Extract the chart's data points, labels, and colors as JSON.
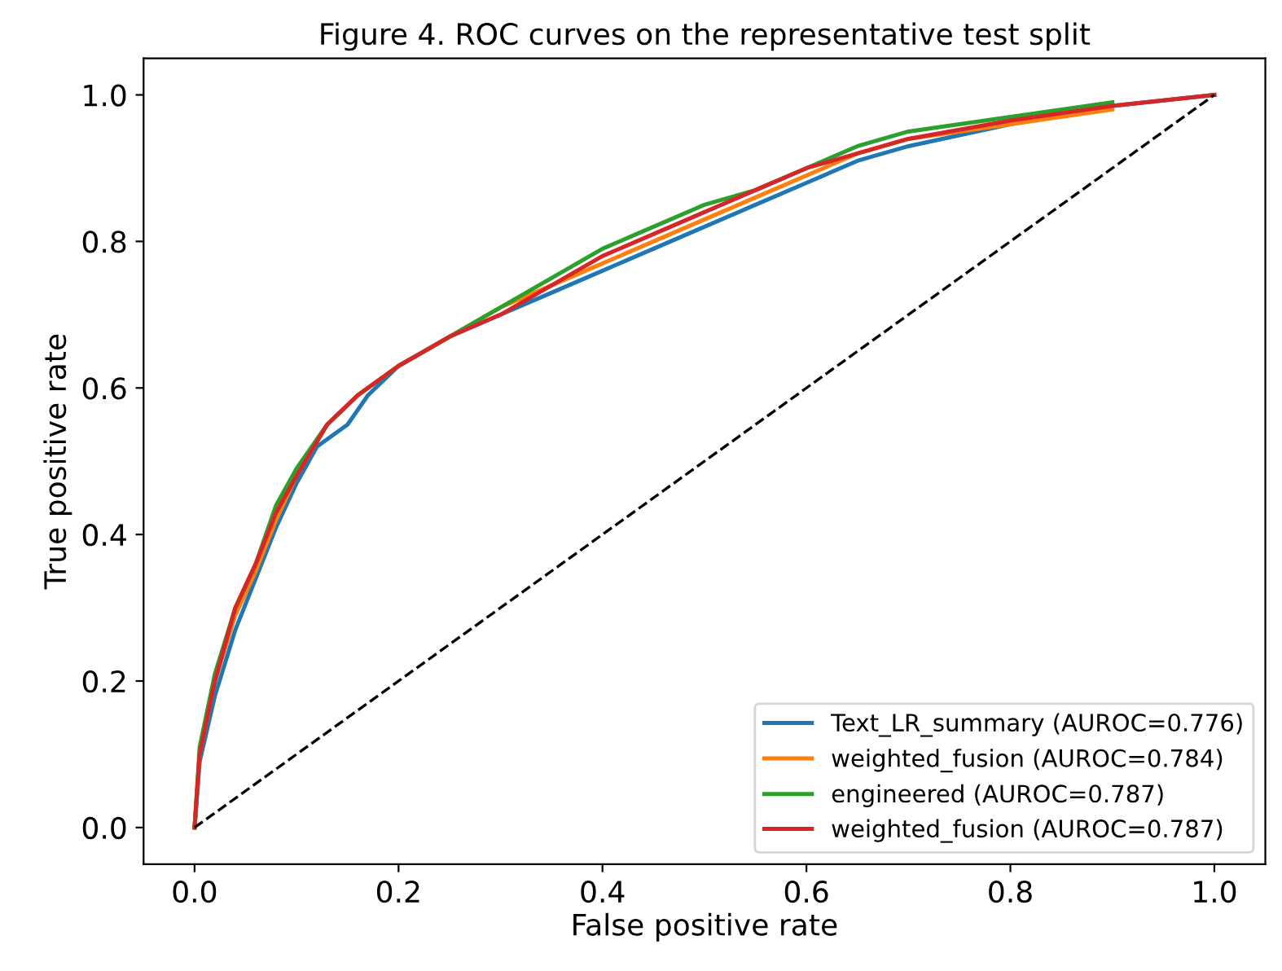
{
  "chart_data": {
    "type": "line",
    "title": "Figure 4. ROC curves on the representative test split",
    "xlabel": "False positive rate",
    "ylabel": "True positive rate",
    "xlim": [
      -0.05,
      1.05
    ],
    "ylim": [
      -0.05,
      1.05
    ],
    "xticks": [
      {
        "value": 0,
        "label": "0.0"
      },
      0.2,
      0.4,
      0.6,
      0.8,
      {
        "value": 1,
        "label": "1.0"
      }
    ],
    "yticks": [
      {
        "value": 0,
        "label": "0.0"
      },
      0.2,
      0.4,
      0.6,
      0.8,
      {
        "value": 1,
        "label": "1.0"
      }
    ],
    "grid": false,
    "legend": "bottom right",
    "marker": "none",
    "series": [
      {
        "name": "Text_LR_summary (AUROC=0.776)",
        "color": "#1f77b4",
        "x": [
          0,
          0.005,
          0.02,
          0.04,
          0.06,
          0.08,
          0.1,
          0.12,
          0.15,
          0.17,
          0.2,
          0.25,
          0.3,
          0.35,
          0.4,
          0.45,
          0.5,
          0.55,
          0.6,
          0.65,
          0.7,
          0.8,
          0.9,
          1
        ],
        "values": [
          0,
          0.09,
          0.18,
          0.27,
          0.34,
          0.41,
          0.47,
          0.52,
          0.55,
          0.59,
          0.63,
          0.67,
          0.7,
          0.73,
          0.76,
          0.79,
          0.82,
          0.85,
          0.88,
          0.91,
          0.93,
          0.96,
          0.985,
          1
        ]
      },
      {
        "name": "weighted_fusion (AUROC=0.784)",
        "color": "#ff7f0e",
        "x": [
          0,
          0.005,
          0.02,
          0.04,
          0.06,
          0.08,
          0.1,
          0.13,
          0.16,
          0.2,
          0.25,
          0.3,
          0.35,
          0.4,
          0.45,
          0.5,
          0.55,
          0.6,
          0.65,
          0.7,
          0.8,
          0.9
        ],
        "values": [
          0,
          0.1,
          0.2,
          0.29,
          0.35,
          0.42,
          0.48,
          0.55,
          0.59,
          0.63,
          0.67,
          0.71,
          0.74,
          0.77,
          0.8,
          0.83,
          0.86,
          0.89,
          0.92,
          0.94,
          0.96,
          0.98
        ]
      },
      {
        "name": "engineered (AUROC=0.787)",
        "color": "#2ca02c",
        "x": [
          0,
          0.005,
          0.02,
          0.04,
          0.06,
          0.08,
          0.1,
          0.13,
          0.16,
          0.2,
          0.25,
          0.3,
          0.35,
          0.4,
          0.45,
          0.5,
          0.55,
          0.6,
          0.65,
          0.7,
          0.8,
          0.9
        ],
        "values": [
          0,
          0.11,
          0.21,
          0.3,
          0.36,
          0.44,
          0.49,
          0.55,
          0.59,
          0.63,
          0.67,
          0.71,
          0.75,
          0.79,
          0.82,
          0.85,
          0.87,
          0.9,
          0.93,
          0.95,
          0.97,
          0.99
        ]
      },
      {
        "name": "weighted_fusion (AUROC=0.787)",
        "color": "#d62728",
        "x": [
          0,
          0.005,
          0.02,
          0.04,
          0.06,
          0.08,
          0.1,
          0.13,
          0.16,
          0.2,
          0.25,
          0.3,
          0.35,
          0.4,
          0.45,
          0.5,
          0.55,
          0.6,
          0.65,
          0.7,
          0.8,
          0.9,
          1
        ],
        "values": [
          0,
          0.1,
          0.2,
          0.3,
          0.36,
          0.43,
          0.48,
          0.55,
          0.59,
          0.63,
          0.67,
          0.7,
          0.74,
          0.78,
          0.81,
          0.84,
          0.87,
          0.9,
          0.92,
          0.94,
          0.965,
          0.985,
          1
        ]
      },
      {
        "color": "#000000",
        "line_style": "dashed",
        "x": [
          0,
          1
        ],
        "values": [
          0,
          1
        ]
      }
    ]
  }
}
